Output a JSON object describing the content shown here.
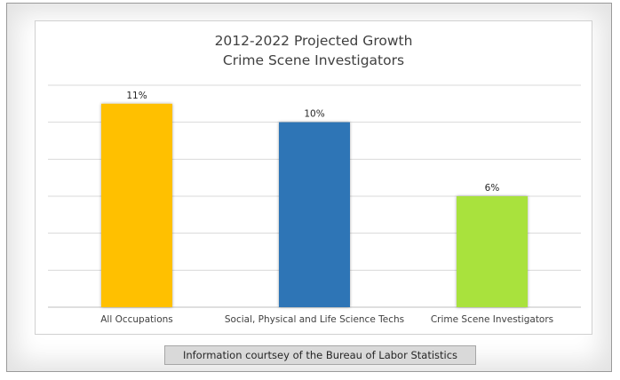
{
  "chart_data": {
    "type": "bar",
    "title": [
      "2012-2022 Projected Growth",
      "Crime Scene Investigators"
    ],
    "categories": [
      "All Occupations",
      "Social, Physical and Life Science Techs",
      "Crime Scene Investigators"
    ],
    "values": [
      11,
      10,
      6
    ],
    "data_labels": [
      "11%",
      "10%",
      "6%"
    ],
    "colors": [
      "#FFC000",
      "#2E75B6",
      "#A9E23E"
    ],
    "ylim": [
      0,
      12
    ],
    "grid": true,
    "legend": "none"
  },
  "footer": {
    "credit": "Information courtsey of the Bureau of Labor Statistics"
  }
}
